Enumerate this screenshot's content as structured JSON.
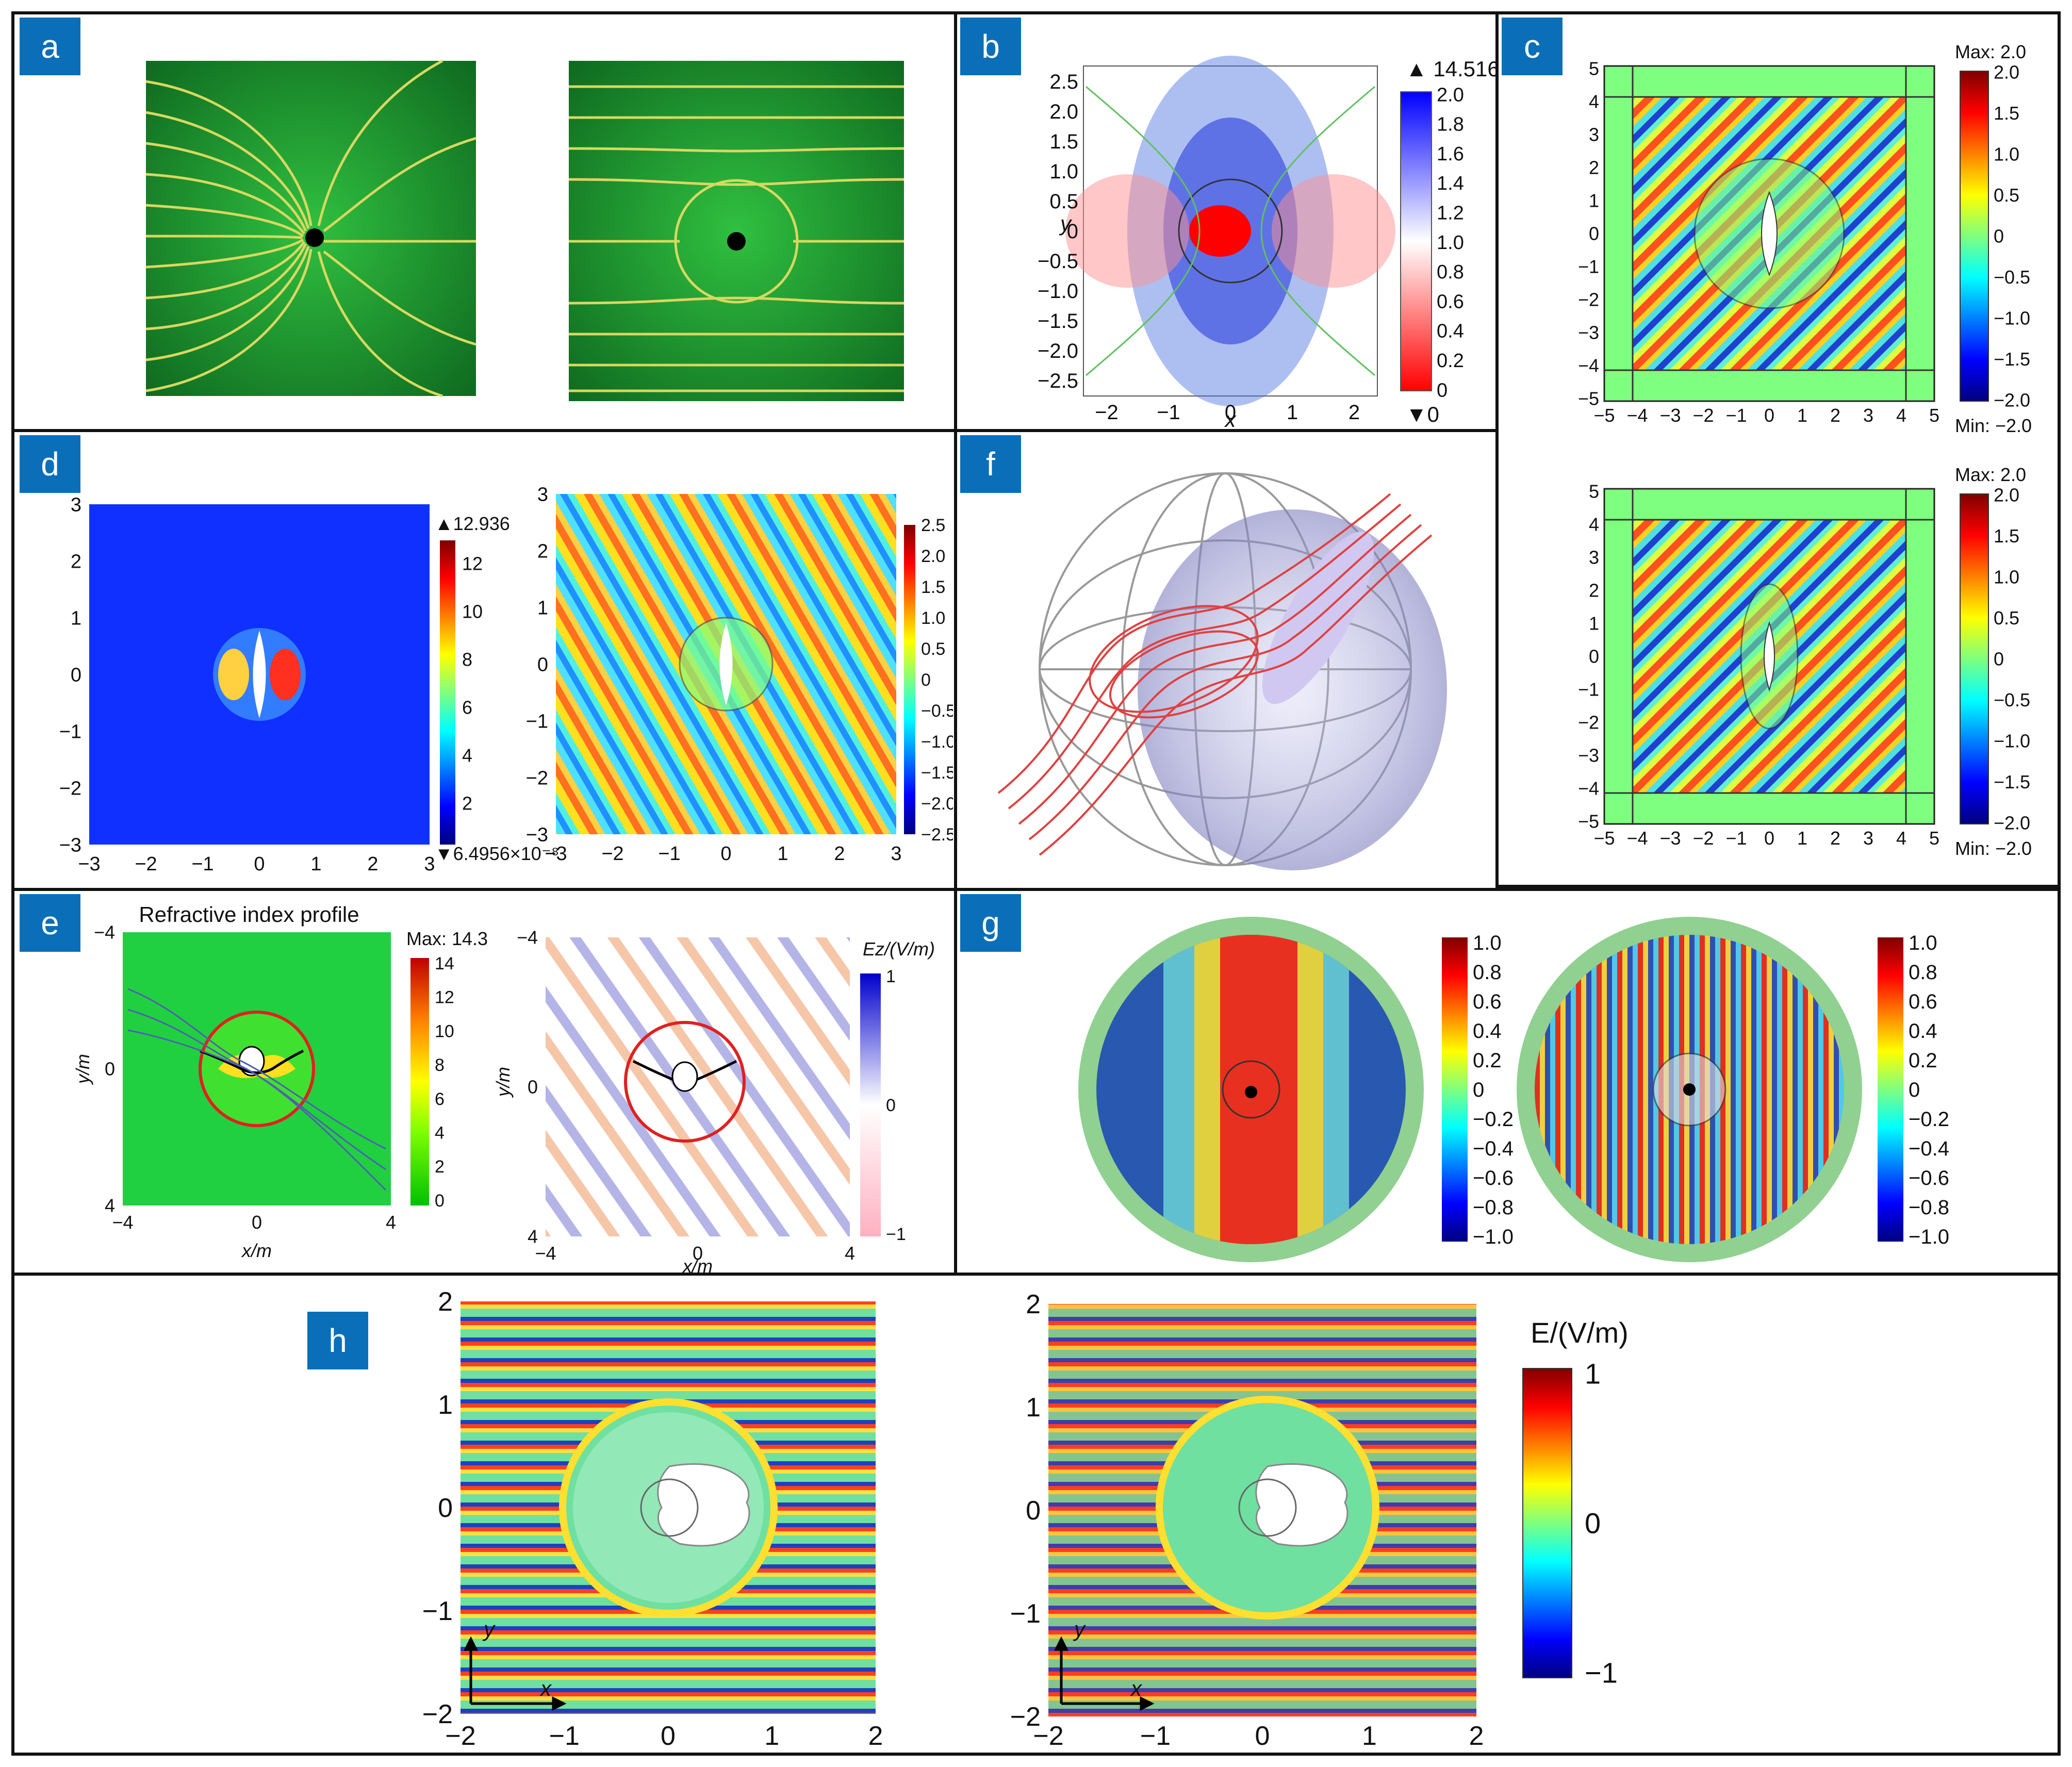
{
  "panels": {
    "a": {
      "label": "a"
    },
    "b": {
      "label": "b",
      "cb_max": "14.516",
      "cb_min": "0",
      "cb_ticks": [
        "2.0",
        "1.8",
        "1.6",
        "1.4",
        "1.2",
        "1.0",
        "0.8",
        "0.6",
        "0.4",
        "0.2",
        "0"
      ],
      "xlabel": "x",
      "ylabel": "y",
      "xticks": [
        "−2",
        "−1",
        "0",
        "1",
        "2"
      ],
      "yticks": [
        "2.5",
        "2.0",
        "1.5",
        "1.0",
        "0.5",
        "0",
        "−0.5",
        "−1.0",
        "−1.5",
        "−2.0",
        "−2.5"
      ]
    },
    "c": {
      "label": "c",
      "max_text": "Max: 2.0",
      "min_text": "Min: −2.0",
      "cb_ticks": [
        "2.0",
        "1.5",
        "1.0",
        "0.5",
        "0",
        "−0.5",
        "−1.0",
        "−1.5",
        "−2.0"
      ],
      "xticks": [
        "−5",
        "−4",
        "−3",
        "−2",
        "−1",
        "0",
        "1",
        "2",
        "3",
        "4",
        "5"
      ],
      "yticks": [
        "5",
        "4",
        "3",
        "2",
        "1",
        "0",
        "−1",
        "−2",
        "−3",
        "−4",
        "−5"
      ]
    },
    "d": {
      "label": "d",
      "cb1_max": "12.936",
      "cb1_min": "6.4956×10⁻⁸",
      "cb1_ticks": [
        "12",
        "10",
        "8",
        "6",
        "4",
        "2"
      ],
      "cb2_ticks": [
        "2.5",
        "2.0",
        "1.5",
        "1.0",
        "0.5",
        "0",
        "−0.5",
        "−1.0",
        "−1.5",
        "−2.0",
        "−2.5"
      ],
      "ticks": [
        "−3",
        "−2",
        "−1",
        "0",
        "1",
        "2",
        "3"
      ],
      "yticks": [
        "3",
        "2",
        "1",
        "0",
        "−1",
        "−2",
        "−3"
      ]
    },
    "e": {
      "label": "e",
      "title": "Refractive index profile",
      "max_text": "Max: 14.3",
      "cb1_ticks": [
        "14",
        "12",
        "10",
        "8",
        "6",
        "4",
        "2",
        "0"
      ],
      "cb2_title": "Ez/(V/m)",
      "cb2_ticks": [
        "1",
        "0",
        "−1"
      ],
      "xlabel": "x/m",
      "ylabel": "y/m",
      "ticks": [
        "−4",
        "0",
        "4"
      ]
    },
    "f": {
      "label": "f"
    },
    "g": {
      "label": "g",
      "cb_ticks": [
        "1.0",
        "0.8",
        "0.6",
        "0.4",
        "0.2",
        "0",
        "−0.2",
        "−0.4",
        "−0.6",
        "−0.8",
        "−1.0"
      ]
    },
    "h": {
      "label": "h",
      "cb_title": "E/(V/m)",
      "cb_ticks": [
        "1",
        "0",
        "−1"
      ],
      "xticks": [
        "−2",
        "−1",
        "0",
        "1",
        "2"
      ],
      "yticks": [
        "2",
        "1",
        "0",
        "−1",
        "−2"
      ],
      "axis_x": "x",
      "axis_y": "y"
    }
  }
}
